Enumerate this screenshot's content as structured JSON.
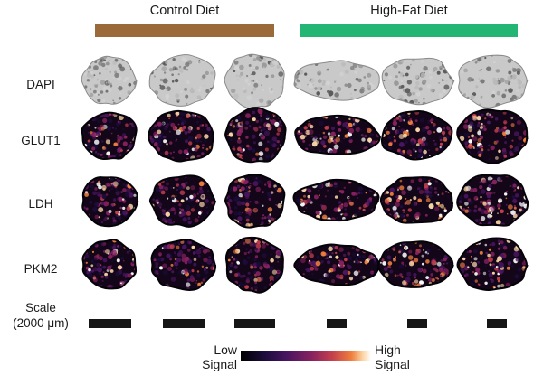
{
  "groups": [
    {
      "title": "Control Diet",
      "bar_color": "#9a6a3a"
    },
    {
      "title": "High-Fat Diet",
      "bar_color": "#22b573"
    }
  ],
  "rows": [
    {
      "label": "DAPI",
      "icon": "grayscale-tissue-section"
    },
    {
      "label": "GLUT1",
      "icon": "heatmap-tissue-section"
    },
    {
      "label": "LDH",
      "icon": "heatmap-tissue-section"
    },
    {
      "label": "PKM2",
      "icon": "heatmap-tissue-section"
    }
  ],
  "scale": {
    "line1": "Scale",
    "line2": "(2000 μm)"
  },
  "legend": {
    "low_line1": "Low",
    "low_line2": "Signal",
    "high_line1": "High",
    "high_line2": "Signal",
    "colormap": [
      "#000000",
      "#1b0c3b",
      "#4a1561",
      "#86215f",
      "#c33f4d",
      "#ef7f3f",
      "#fcd8a8",
      "#ffffff"
    ]
  }
}
